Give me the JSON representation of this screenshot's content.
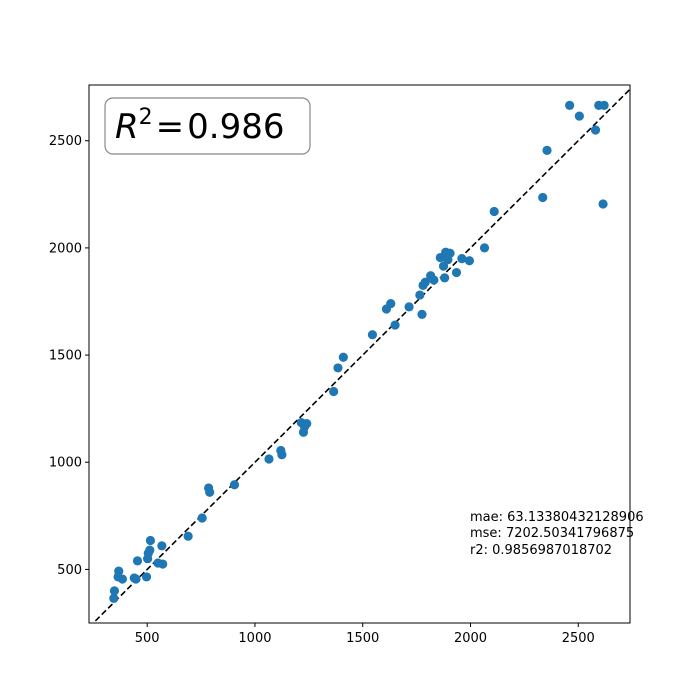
{
  "chart_data": {
    "type": "scatter",
    "title": "",
    "xlabel": "",
    "ylabel": "",
    "xlim": [
      230,
      2740
    ],
    "ylim": [
      250,
      2760
    ],
    "xticks": [
      500,
      1000,
      1500,
      2000,
      2500
    ],
    "yticks": [
      500,
      1000,
      1500,
      2000,
      2500
    ],
    "grid": false,
    "point_color": "#1f77b4",
    "reference_line": {
      "style": "dashed",
      "color": "#000000",
      "equation": "y = x"
    },
    "r2_box": {
      "symbol": "R",
      "exponent": "2",
      "equals": "=",
      "value": "0.986",
      "placement": "top-left"
    },
    "stats": [
      "mae: 63.13380432128906",
      "mse: 7202.50341796875",
      "r2: 0.9856987018702"
    ],
    "points": [
      {
        "x": 345,
        "y": 365
      },
      {
        "x": 348,
        "y": 400
      },
      {
        "x": 365,
        "y": 465
      },
      {
        "x": 368,
        "y": 492
      },
      {
        "x": 385,
        "y": 455
      },
      {
        "x": 440,
        "y": 460
      },
      {
        "x": 448,
        "y": 455
      },
      {
        "x": 455,
        "y": 540
      },
      {
        "x": 497,
        "y": 465
      },
      {
        "x": 502,
        "y": 550
      },
      {
        "x": 505,
        "y": 575
      },
      {
        "x": 512,
        "y": 590
      },
      {
        "x": 515,
        "y": 635
      },
      {
        "x": 550,
        "y": 530
      },
      {
        "x": 568,
        "y": 610
      },
      {
        "x": 572,
        "y": 525
      },
      {
        "x": 690,
        "y": 655
      },
      {
        "x": 755,
        "y": 740
      },
      {
        "x": 785,
        "y": 880
      },
      {
        "x": 790,
        "y": 860
      },
      {
        "x": 905,
        "y": 895
      },
      {
        "x": 1065,
        "y": 1015
      },
      {
        "x": 1120,
        "y": 1055
      },
      {
        "x": 1125,
        "y": 1035
      },
      {
        "x": 1215,
        "y": 1185
      },
      {
        "x": 1225,
        "y": 1140
      },
      {
        "x": 1230,
        "y": 1165
      },
      {
        "x": 1240,
        "y": 1180
      },
      {
        "x": 1365,
        "y": 1330
      },
      {
        "x": 1385,
        "y": 1440
      },
      {
        "x": 1410,
        "y": 1490
      },
      {
        "x": 1545,
        "y": 1595
      },
      {
        "x": 1610,
        "y": 1715
      },
      {
        "x": 1630,
        "y": 1740
      },
      {
        "x": 1650,
        "y": 1640
      },
      {
        "x": 1715,
        "y": 1725
      },
      {
        "x": 1765,
        "y": 1780
      },
      {
        "x": 1775,
        "y": 1690
      },
      {
        "x": 1780,
        "y": 1825
      },
      {
        "x": 1790,
        "y": 1840
      },
      {
        "x": 1815,
        "y": 1870
      },
      {
        "x": 1830,
        "y": 1850
      },
      {
        "x": 1860,
        "y": 1955
      },
      {
        "x": 1875,
        "y": 1915
      },
      {
        "x": 1880,
        "y": 1860
      },
      {
        "x": 1885,
        "y": 1980
      },
      {
        "x": 1895,
        "y": 1945
      },
      {
        "x": 1905,
        "y": 1975
      },
      {
        "x": 1935,
        "y": 1885
      },
      {
        "x": 1960,
        "y": 1950
      },
      {
        "x": 1995,
        "y": 1940
      },
      {
        "x": 2065,
        "y": 2000
      },
      {
        "x": 2110,
        "y": 2170
      },
      {
        "x": 2335,
        "y": 2235
      },
      {
        "x": 2355,
        "y": 2455
      },
      {
        "x": 2460,
        "y": 2665
      },
      {
        "x": 2505,
        "y": 2615
      },
      {
        "x": 2580,
        "y": 2550
      },
      {
        "x": 2595,
        "y": 2665
      },
      {
        "x": 2615,
        "y": 2205
      },
      {
        "x": 2620,
        "y": 2665
      }
    ]
  }
}
